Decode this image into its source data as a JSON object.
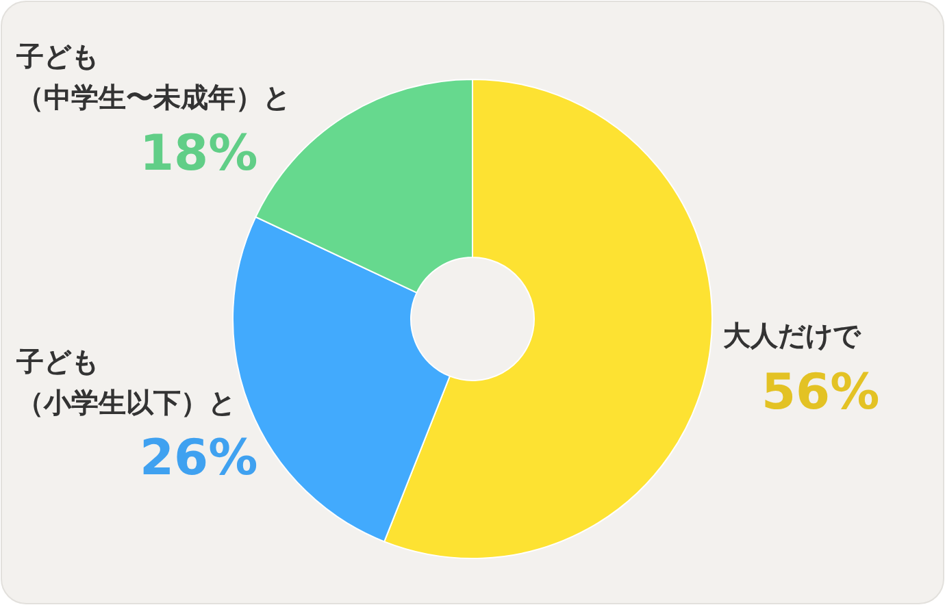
{
  "chart_data": {
    "type": "donut",
    "categories": [
      "大人だけで",
      "子ども（小学生以下）と",
      "子ども（中学生〜未成年）と"
    ],
    "values": [
      56,
      26,
      18
    ],
    "colors": [
      "#fde232",
      "#42aafd",
      "#66d98e"
    ],
    "value_labels": [
      "56%",
      "26%",
      "18%"
    ],
    "legend": false
  }
}
